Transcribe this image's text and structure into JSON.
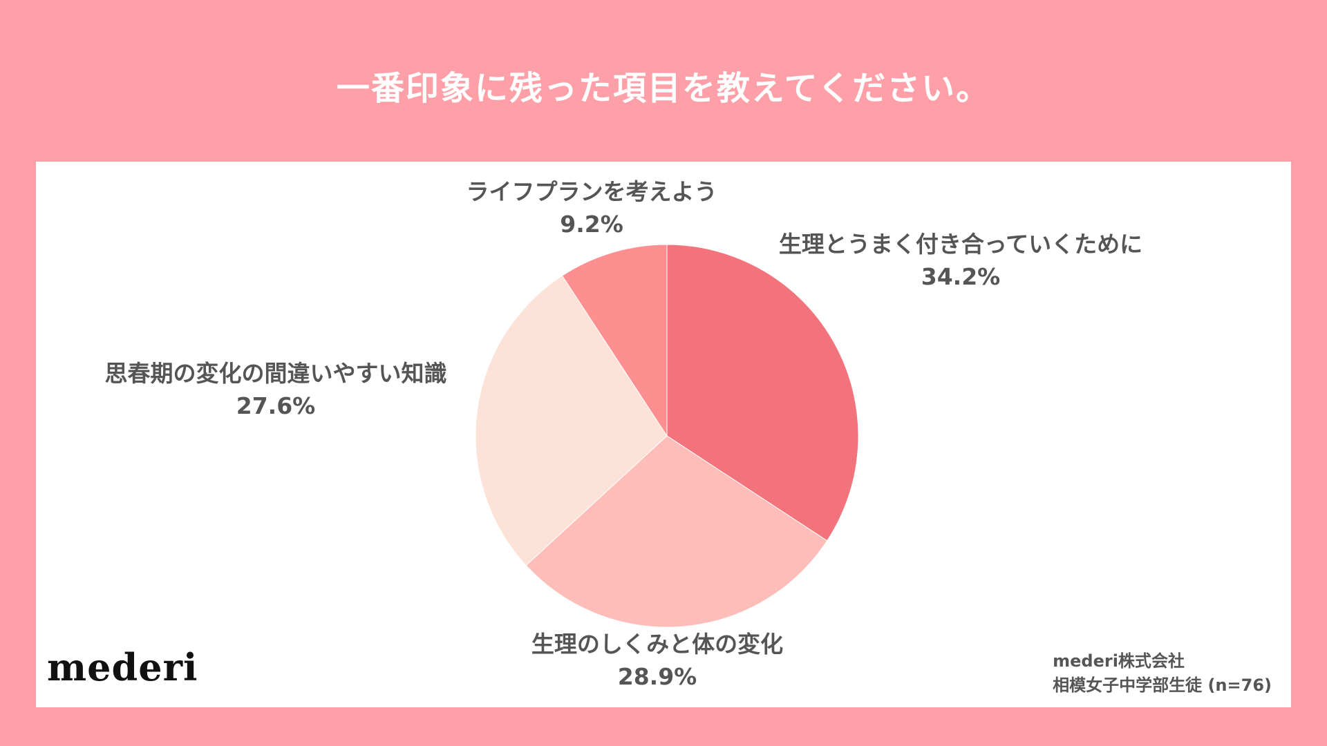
{
  "title": "一番印象に残った項目を教えてください。",
  "colors": {
    "background": "#ffa0a8",
    "panel": "#ffffff",
    "label_text": "#555555",
    "title_text": "#ffffff"
  },
  "chart_data": {
    "type": "pie",
    "start_angle_deg": 0,
    "direction": "clockwise",
    "slices": [
      {
        "label": "生理とうまく付き合っていくために",
        "value": 34.2,
        "value_label": "34.2%",
        "color": "#f2737b"
      },
      {
        "label": "生理のしくみと体の変化",
        "value": 28.9,
        "value_label": "28.9%",
        "color": "#ffbdb9"
      },
      {
        "label": "思春期の変化の間違いやすい知識",
        "value": 27.6,
        "value_label": "27.6%",
        "color": "#fde2d8"
      },
      {
        "label": "ライフプランを考えよう",
        "value": 9.2,
        "value_label": "9.2%",
        "color": "#fe8f91"
      }
    ]
  },
  "logo": "mederi",
  "source": {
    "company": "mederi株式会社",
    "sample": "相模女子中学部生徒 (n=76)"
  }
}
